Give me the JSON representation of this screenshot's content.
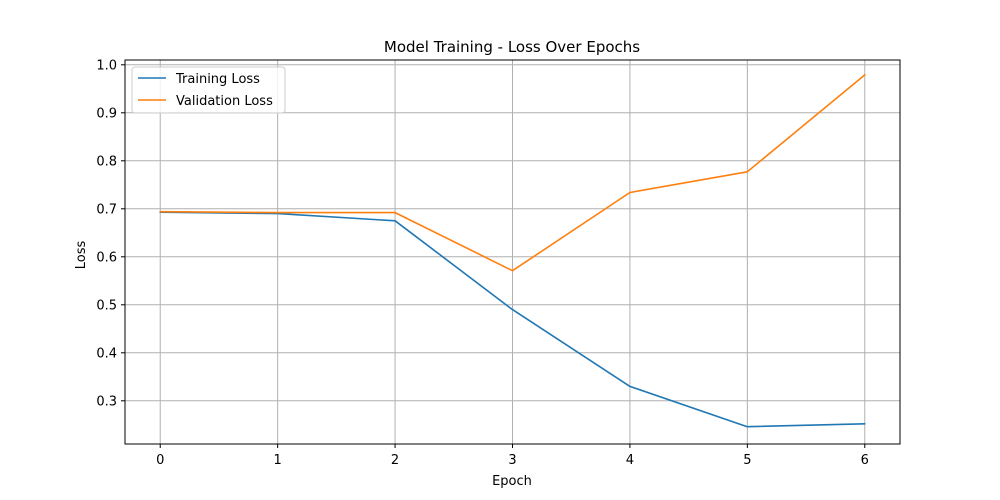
{
  "chart_data": {
    "type": "line",
    "title": "Model Training - Loss Over Epochs",
    "xlabel": "Epoch",
    "ylabel": "Loss",
    "x": [
      0,
      1,
      2,
      3,
      4,
      5,
      6
    ],
    "xlim": [
      -0.3,
      6.3
    ],
    "ylim": [
      0.21,
      1.01
    ],
    "xticks": [
      0,
      1,
      2,
      3,
      4,
      5,
      6
    ],
    "yticks": [
      0.3,
      0.4,
      0.5,
      0.6,
      0.7,
      0.8,
      0.9,
      1.0
    ],
    "ytick_labels": [
      "0.3",
      "0.4",
      "0.5",
      "0.6",
      "0.7",
      "0.8",
      "0.9",
      "1.0"
    ],
    "grid": true,
    "legend_position": "top-left",
    "series": [
      {
        "name": "Training Loss",
        "color": "#1f77b4",
        "values": [
          0.693,
          0.69,
          0.675,
          0.49,
          0.33,
          0.246,
          0.252
        ]
      },
      {
        "name": "Validation Loss",
        "color": "#ff7f0e",
        "values": [
          0.694,
          0.692,
          0.692,
          0.571,
          0.734,
          0.777,
          0.979
        ]
      }
    ]
  }
}
